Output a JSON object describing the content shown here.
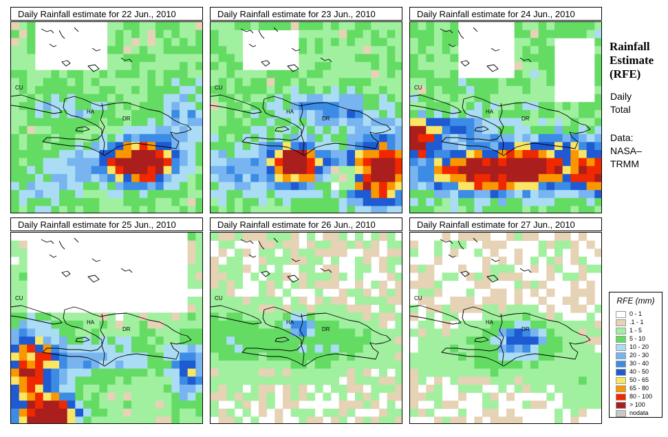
{
  "panels": [
    {
      "title": "Daily Rainfall estimate for  22 Jun., 2010",
      "labels": [
        "CU",
        "HA",
        "DR"
      ],
      "rain": {
        "base": 0.45,
        "blobs": [
          [
            0.68,
            0.73,
            0.15,
            0.11,
            5.5
          ],
          [
            0.4,
            0.74,
            0.25,
            0.09,
            1.2
          ],
          [
            0.3,
            0.45,
            0.18,
            0.08,
            0.9
          ],
          [
            0.9,
            0.5,
            0.15,
            0.2,
            1.0
          ],
          [
            0.15,
            0.9,
            0.2,
            0.1,
            0.8
          ]
        ],
        "dry": [
          [
            0.32,
            0.12,
            0.18,
            0.15
          ]
        ]
      }
    },
    {
      "title": "Daily Rainfall estimate for  23 Jun., 2010",
      "labels": [
        "CU",
        "HA",
        "DR"
      ],
      "rain": {
        "base": 0.55,
        "blobs": [
          [
            0.44,
            0.74,
            0.13,
            0.1,
            5.2
          ],
          [
            0.88,
            0.78,
            0.16,
            0.16,
            5.0
          ],
          [
            0.6,
            0.46,
            0.28,
            0.08,
            1.4
          ],
          [
            0.15,
            0.78,
            0.18,
            0.12,
            1.2
          ]
        ],
        "dry": [
          [
            0.68,
            0.82,
            0.06,
            0.06
          ],
          [
            0.3,
            0.15,
            0.15,
            0.12
          ]
        ]
      }
    },
    {
      "title": "Daily Rainfall estimate for  24 Jun., 2010",
      "labels": [
        "CU",
        "HA",
        "DR"
      ],
      "rain": {
        "base": 0.6,
        "blobs": [
          [
            0.45,
            0.78,
            0.33,
            0.1,
            5.0
          ],
          [
            0.05,
            0.62,
            0.08,
            0.08,
            4.4
          ],
          [
            0.75,
            0.68,
            0.3,
            0.1,
            2.0
          ],
          [
            0.2,
            0.55,
            0.22,
            0.06,
            1.8
          ],
          [
            0.95,
            0.8,
            0.1,
            0.1,
            3.0
          ]
        ],
        "dry": [
          [
            0.4,
            0.1,
            0.15,
            0.2
          ],
          [
            0.85,
            0.25,
            0.1,
            0.15
          ]
        ]
      }
    },
    {
      "title": "Daily Rainfall estimate for  25 Jun., 2010",
      "labels": [
        "CU",
        "HA",
        "DR"
      ],
      "rain": {
        "base": 0.35,
        "blobs": [
          [
            0.2,
            0.95,
            0.13,
            0.09,
            5.6
          ],
          [
            0.1,
            0.72,
            0.14,
            0.2,
            3.6
          ],
          [
            0.92,
            0.73,
            0.08,
            0.14,
            2.2
          ],
          [
            0.45,
            0.65,
            0.3,
            0.1,
            1.2
          ]
        ],
        "dry": [
          [
            0.5,
            0.2,
            0.4,
            0.2
          ]
        ]
      }
    },
    {
      "title": "Daily Rainfall estimate for  26 Jun., 2010",
      "labels": [
        "CU",
        "HA",
        "DR"
      ],
      "rain": {
        "base": 0.18,
        "blobs": [
          [
            0.46,
            0.48,
            0.07,
            0.05,
            1.7
          ],
          [
            0.55,
            0.58,
            0.35,
            0.12,
            0.7
          ],
          [
            0.1,
            0.55,
            0.15,
            0.15,
            0.6
          ]
        ],
        "dry": []
      }
    },
    {
      "title": "Daily Rainfall estimate for  27 Jun., 2010",
      "labels": [
        "CU",
        "HA",
        "DR"
      ],
      "rain": {
        "base": 0.16,
        "blobs": [
          [
            0.58,
            0.55,
            0.12,
            0.08,
            1.8
          ],
          [
            0.5,
            0.62,
            0.3,
            0.12,
            0.7
          ],
          [
            0.9,
            0.8,
            0.1,
            0.1,
            0.4
          ]
        ],
        "dry": []
      }
    }
  ],
  "side": {
    "title_lines": [
      "Rainfall",
      "Estimate",
      "(RFE)"
    ],
    "daily": "Daily",
    "total": "Total",
    "data_label": "Data:",
    "source_1": "NASA–",
    "source_2": "TRMM"
  },
  "legend": {
    "title": "RFE (mm)",
    "items": [
      {
        "label": "0 - 1",
        "color": "#ffffff"
      },
      {
        "label": ".1 - 1",
        "color": "#e6d2b4"
      },
      {
        "label": "1 - 5",
        "color": "#a0f0a0"
      },
      {
        "label": "5 - 10",
        "color": "#64dc64"
      },
      {
        "label": "10 - 20",
        "color": "#aadcf5"
      },
      {
        "label": "20 - 30",
        "color": "#78b4f0"
      },
      {
        "label": "30 - 40",
        "color": "#3c8ce6"
      },
      {
        "label": "40 - 50",
        "color": "#1e5ad2"
      },
      {
        "label": "50 - 65",
        "color": "#fae664"
      },
      {
        "label": "65 - 80",
        "color": "#fa9600"
      },
      {
        "label": "80 - 100",
        "color": "#f02800"
      },
      {
        "label": "> 100",
        "color": "#aa1e1e"
      },
      {
        "label": "nodata",
        "color": "#c8c8c8"
      }
    ]
  }
}
